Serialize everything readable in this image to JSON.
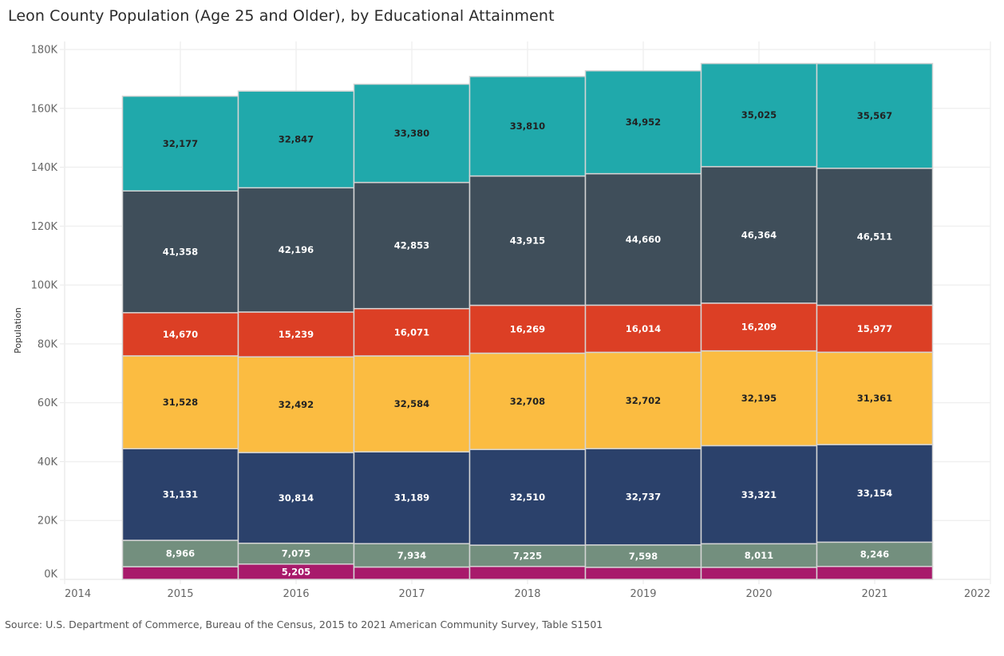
{
  "chart_data": {
    "type": "bar",
    "stacked": true,
    "title": "Leon County Population (Age 25 and Older), by Educational Attainment",
    "xlabel": "",
    "ylabel": "Population",
    "xlim": [
      2014,
      2022
    ],
    "ylim": [
      0,
      180000
    ],
    "x_ticks": [
      "2014",
      "2015",
      "2016",
      "2017",
      "2018",
      "2019",
      "2020",
      "2021",
      "2022"
    ],
    "y_ticks": [
      "0K",
      "20K",
      "40K",
      "60K",
      "80K",
      "100K",
      "120K",
      "140K",
      "160K",
      "180K"
    ],
    "grid": true,
    "legend": "none",
    "categories": [
      2015,
      2016,
      2017,
      2018,
      2019,
      2020,
      2021
    ],
    "series": [
      {
        "color": "#A81A6B",
        "label_color": "#ffffff",
        "values": [
          4300,
          5205,
          4200,
          4400,
          4100,
          4100,
          4400
        ],
        "labels": [
          null,
          "5,205",
          null,
          null,
          null,
          null,
          null
        ]
      },
      {
        "color": "#738F7E",
        "label_color": "#ffffff",
        "values": [
          8966,
          7075,
          7934,
          7225,
          7598,
          8011,
          8246
        ],
        "labels": [
          "8,966",
          "7,075",
          "7,934",
          "7,225",
          "7,598",
          "8,011",
          "8,246"
        ]
      },
      {
        "color": "#2B416B",
        "label_color": "#ffffff",
        "values": [
          31131,
          30814,
          31189,
          32510,
          32737,
          33321,
          33154
        ],
        "labels": [
          "31,131",
          "30,814",
          "31,189",
          "32,510",
          "32,737",
          "33,321",
          "33,154"
        ]
      },
      {
        "color": "#FBBC41",
        "label_color": "#222222",
        "values": [
          31528,
          32492,
          32584,
          32708,
          32702,
          32195,
          31361
        ],
        "labels": [
          "31,528",
          "32,492",
          "32,584",
          "32,708",
          "32,702",
          "32,195",
          "31,361"
        ]
      },
      {
        "color": "#DC3F25",
        "label_color": "#ffffff",
        "values": [
          14670,
          15239,
          16071,
          16269,
          16014,
          16209,
          15977
        ],
        "labels": [
          "14,670",
          "15,239",
          "16,071",
          "16,269",
          "16,014",
          "16,209",
          "15,977"
        ]
      },
      {
        "color": "#3F4E5A",
        "label_color": "#ffffff",
        "values": [
          41358,
          42196,
          42853,
          43915,
          44660,
          46364,
          46511
        ],
        "labels": [
          "41,358",
          "42,196",
          "42,853",
          "43,915",
          "44,660",
          "46,364",
          "46,511"
        ]
      },
      {
        "color": "#20A9AB",
        "label_color": "#222222",
        "values": [
          32177,
          32847,
          33380,
          33810,
          34952,
          35025,
          35567
        ],
        "labels": [
          "32,177",
          "32,847",
          "33,380",
          "33,810",
          "34,952",
          "35,025",
          "35,567"
        ]
      }
    ]
  },
  "source": "Source: U.S. Department of Commerce, Bureau of the Census, 2015 to 2021 American Community Survey, Table S1501"
}
